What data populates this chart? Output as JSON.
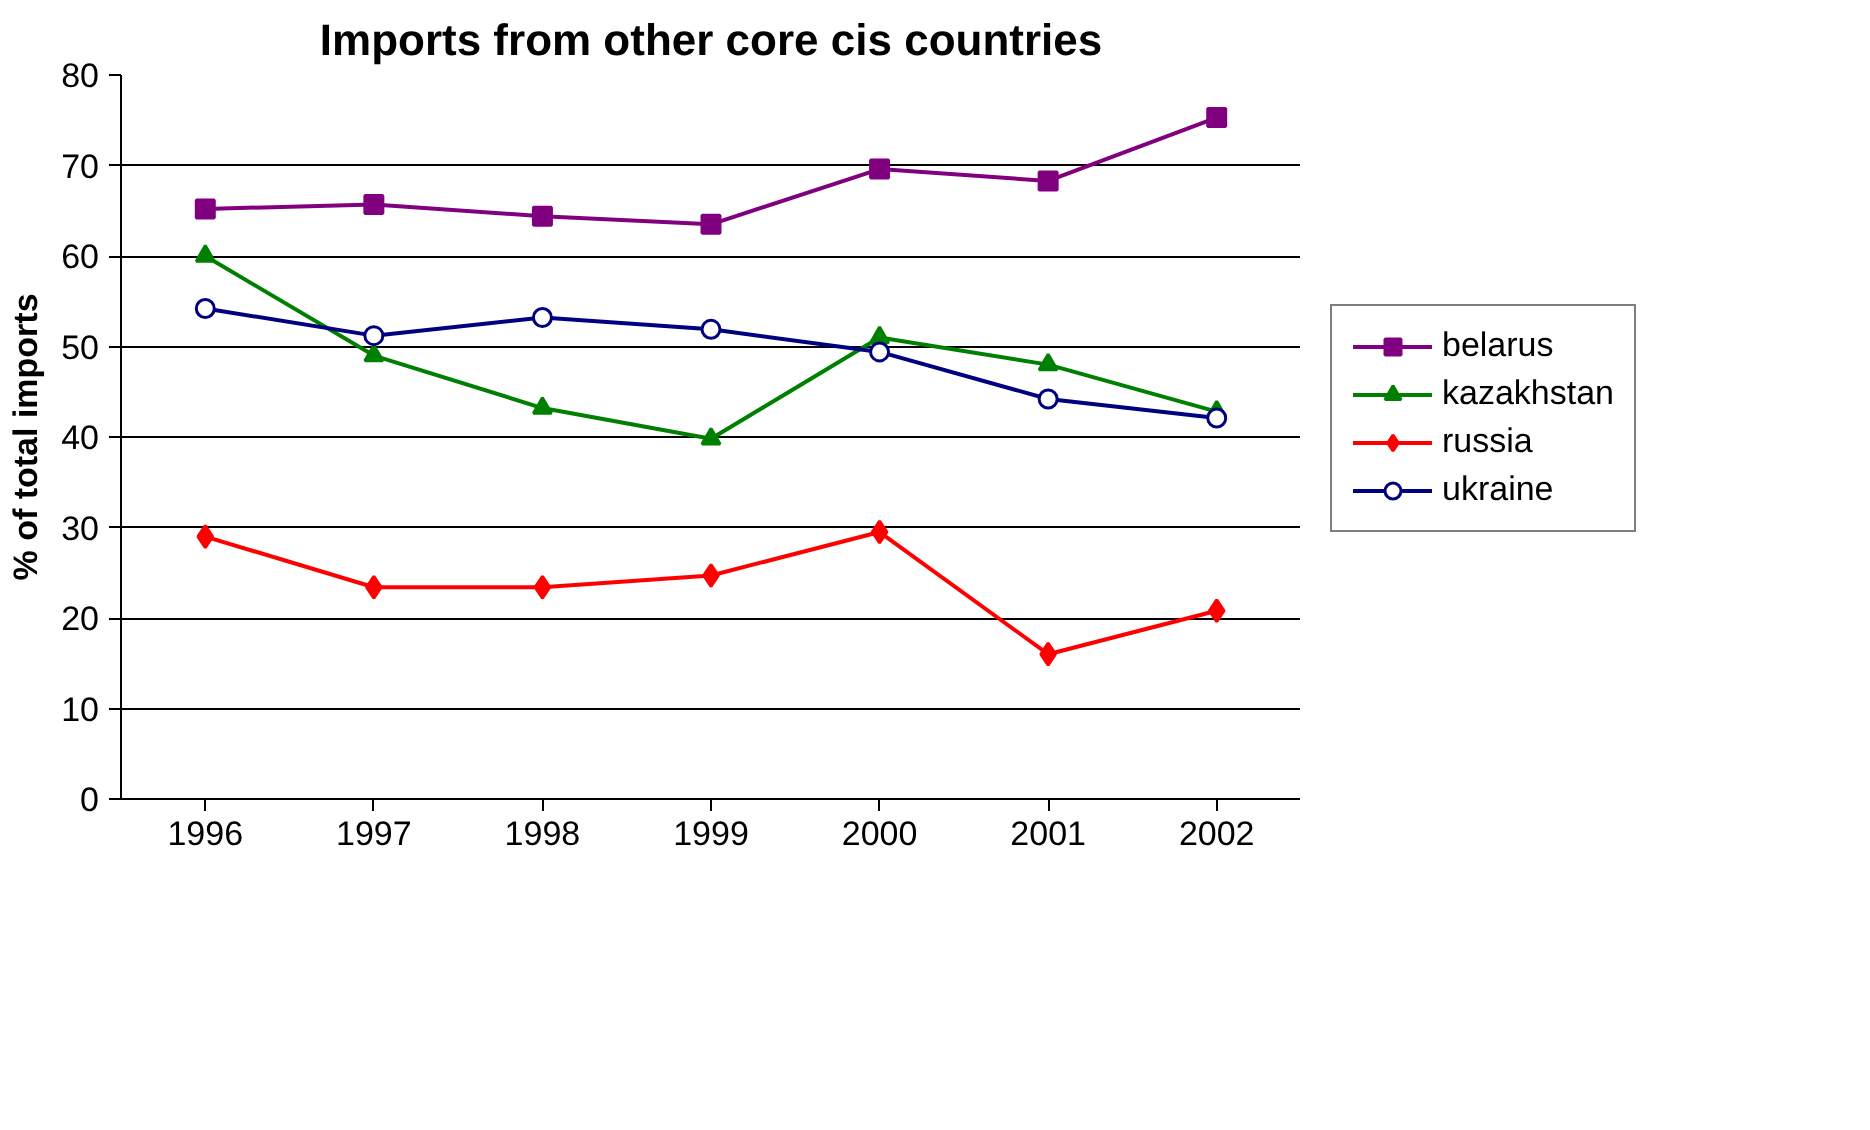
{
  "chart_data": {
    "type": "line",
    "title": "Imports from other core cis countries",
    "ylabel": "% of total imports",
    "categories": [
      "1996",
      "1997",
      "1998",
      "1999",
      "2000",
      "2001",
      "2002"
    ],
    "ylim": [
      0,
      80
    ],
    "yticks": [
      0,
      10,
      20,
      30,
      40,
      50,
      60,
      70,
      80
    ],
    "grid": "y",
    "legend": "right",
    "series": [
      {
        "name": "belarus",
        "color": "#800080",
        "marker": "square",
        "values": [
          65.2,
          65.7,
          64.4,
          63.5,
          69.6,
          68.3,
          75.3
        ]
      },
      {
        "name": "kazakhstan",
        "color": "#008000",
        "marker": "triangle",
        "values": [
          60,
          49,
          43.2,
          39.8,
          51,
          48,
          42.8
        ]
      },
      {
        "name": "russia",
        "color": "#ff0000",
        "marker": "diamond",
        "values": [
          29,
          23.4,
          23.4,
          24.7,
          29.5,
          16,
          20.8
        ]
      },
      {
        "name": "ukraine",
        "color": "#000080",
        "marker": "circle",
        "values": [
          54.2,
          51.2,
          53.2,
          51.9,
          49.4,
          44.2,
          42.1
        ]
      }
    ]
  }
}
